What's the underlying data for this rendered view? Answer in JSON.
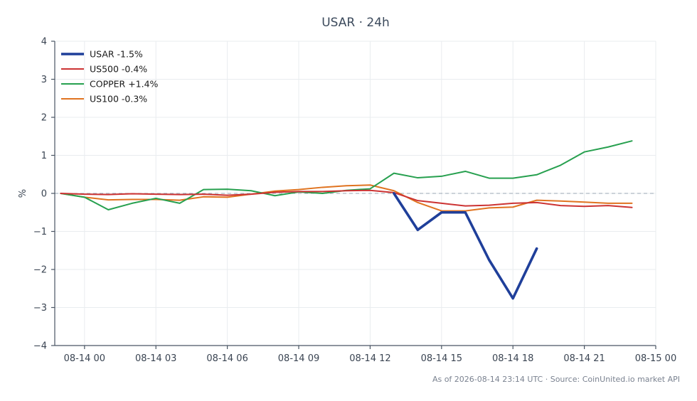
{
  "chart_data": {
    "type": "line",
    "title": "USAR · 24h",
    "ylabel": "%",
    "xlabel": "",
    "ylim": [
      -4,
      4
    ],
    "yticks": [
      4,
      3,
      2,
      1,
      0,
      -1,
      -2,
      -3,
      -4
    ],
    "ytick_labels": [
      "4",
      "3",
      "2",
      "1",
      "0",
      "−1",
      "−2",
      "−3",
      "−4"
    ],
    "xlim": [
      "2026-08-13 22:45",
      "2026-08-15 00:00"
    ],
    "xticks": [
      "2026-08-14 00:00",
      "2026-08-14 03:00",
      "2026-08-14 06:00",
      "2026-08-14 09:00",
      "2026-08-14 12:00",
      "2026-08-14 15:00",
      "2026-08-14 18:00",
      "2026-08-14 21:00",
      "2026-08-15 00:00"
    ],
    "xtick_labels": [
      "08-14 00",
      "08-14 03",
      "08-14 06",
      "08-14 09",
      "08-14 12",
      "08-14 15",
      "08-14 18",
      "08-14 21",
      "08-15 00"
    ],
    "grid": true,
    "zero_line": true,
    "legend_position": "top-left",
    "series": [
      {
        "name": "USAR -1.5%",
        "color": "#1f3f9a",
        "x": [
          "2026-08-14 13:00",
          "2026-08-14 14:00",
          "2026-08-14 15:00",
          "2026-08-14 16:00",
          "2026-08-14 17:00",
          "2026-08-14 18:00",
          "2026-08-14 19:00"
        ],
        "values": [
          0.0,
          -0.96,
          -0.5,
          -0.5,
          -1.75,
          -2.76,
          -1.45
        ]
      },
      {
        "name": "US500 -0.4%",
        "color": "#cc3333",
        "x": [
          "2026-08-13 23:00",
          "2026-08-14 00:00",
          "2026-08-14 01:00",
          "2026-08-14 02:00",
          "2026-08-14 03:00",
          "2026-08-14 04:00",
          "2026-08-14 05:00",
          "2026-08-14 06:00",
          "2026-08-14 07:00",
          "2026-08-14 08:00",
          "2026-08-14 09:00",
          "2026-08-14 10:00",
          "2026-08-14 11:00",
          "2026-08-14 12:00",
          "2026-08-14 13:00",
          "2026-08-14 14:00",
          "2026-08-14 15:00",
          "2026-08-14 16:00",
          "2026-08-14 17:00",
          "2026-08-14 18:00",
          "2026-08-14 19:00",
          "2026-08-14 20:00",
          "2026-08-14 21:00",
          "2026-08-14 22:00",
          "2026-08-14 23:00"
        ],
        "values": [
          0.0,
          -0.02,
          -0.03,
          -0.01,
          -0.02,
          -0.03,
          -0.02,
          -0.05,
          -0.02,
          0.03,
          0.05,
          0.05,
          0.07,
          0.08,
          0.02,
          -0.19,
          -0.26,
          -0.33,
          -0.31,
          -0.26,
          -0.24,
          -0.32,
          -0.34,
          -0.32,
          -0.37
        ]
      },
      {
        "name": "COPPER +1.4%",
        "color": "#27a04f",
        "x": [
          "2026-08-13 23:00",
          "2026-08-14 00:00",
          "2026-08-14 01:00",
          "2026-08-14 02:00",
          "2026-08-14 03:00",
          "2026-08-14 04:00",
          "2026-08-14 05:00",
          "2026-08-14 06:00",
          "2026-08-14 07:00",
          "2026-08-14 08:00",
          "2026-08-14 09:00",
          "2026-08-14 10:00",
          "2026-08-14 11:00",
          "2026-08-14 12:00",
          "2026-08-14 13:00",
          "2026-08-14 14:00",
          "2026-08-14 15:00",
          "2026-08-14 16:00",
          "2026-08-14 17:00",
          "2026-08-14 18:00",
          "2026-08-14 19:00",
          "2026-08-14 20:00",
          "2026-08-14 21:00",
          "2026-08-14 22:00",
          "2026-08-14 23:00"
        ],
        "values": [
          0.0,
          -0.1,
          -0.43,
          -0.26,
          -0.13,
          -0.26,
          0.1,
          0.11,
          0.07,
          -0.06,
          0.04,
          0.0,
          0.08,
          0.12,
          0.53,
          0.41,
          0.45,
          0.58,
          0.4,
          0.4,
          0.49,
          0.74,
          1.09,
          1.22,
          1.38
        ]
      },
      {
        "name": "US100 -0.3%",
        "color": "#e07320",
        "x": [
          "2026-08-13 23:00",
          "2026-08-14 00:00",
          "2026-08-14 01:00",
          "2026-08-14 02:00",
          "2026-08-14 03:00",
          "2026-08-14 04:00",
          "2026-08-14 05:00",
          "2026-08-14 06:00",
          "2026-08-14 07:00",
          "2026-08-14 08:00",
          "2026-08-14 09:00",
          "2026-08-14 10:00",
          "2026-08-14 11:00",
          "2026-08-14 12:00",
          "2026-08-14 13:00",
          "2026-08-14 14:00",
          "2026-08-14 15:00",
          "2026-08-14 16:00",
          "2026-08-14 17:00",
          "2026-08-14 18:00",
          "2026-08-14 19:00",
          "2026-08-14 20:00",
          "2026-08-14 21:00",
          "2026-08-14 22:00",
          "2026-08-14 23:00"
        ],
        "values": [
          0.0,
          -0.1,
          -0.17,
          -0.16,
          -0.16,
          -0.18,
          -0.09,
          -0.1,
          -0.02,
          0.06,
          0.1,
          0.16,
          0.2,
          0.22,
          0.07,
          -0.24,
          -0.46,
          -0.46,
          -0.38,
          -0.36,
          -0.18,
          -0.2,
          -0.23,
          -0.26,
          -0.26
        ]
      }
    ]
  },
  "footer": {
    "text": "As of 2026-08-14 23:14 UTC · Source: CoinUnited.io market API"
  }
}
